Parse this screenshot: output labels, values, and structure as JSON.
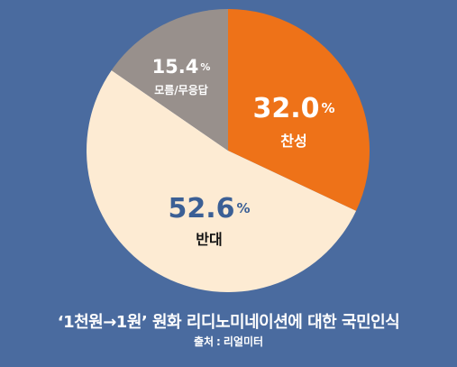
{
  "chart_data": {
    "type": "pie",
    "title": "‘1천원→1원’ 원화 리디노미네이션에 대한 국민인식",
    "source_label": "출처",
    "source_separator": ":",
    "source_value": "리얼미터",
    "percent_symbol": "%",
    "slices": [
      {
        "label": "찬성",
        "value": 32.0,
        "display": "32.0",
        "color": "#ee7218",
        "value_color": "#ffffff",
        "label_color": "#ffffff"
      },
      {
        "label": "반대",
        "value": 52.6,
        "display": "52.6",
        "color": "#fdebd3",
        "value_color": "#3b5f95",
        "label_color": "#111111"
      },
      {
        "label": "모름/무응답",
        "value": 15.4,
        "display": "15.4",
        "color": "#98908c",
        "value_color": "#ffffff",
        "label_color": "#ffffff"
      }
    ],
    "start_angle_deg": 0,
    "direction": "clockwise"
  }
}
